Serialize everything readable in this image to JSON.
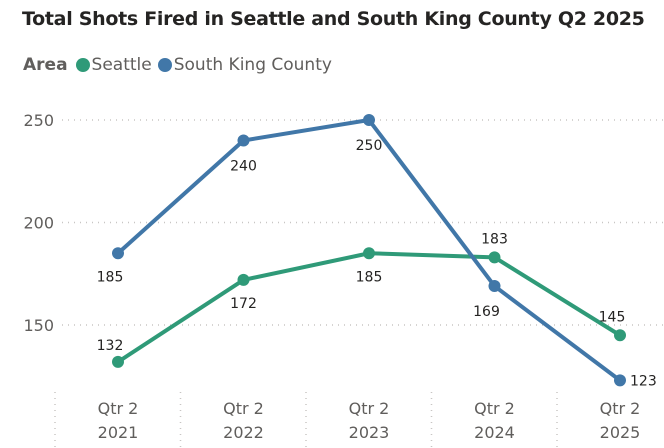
{
  "chart_data": {
    "type": "line",
    "title": "Total Shots Fired in Seattle and South King County Q2 2025",
    "legend_title": "Area",
    "legend_position": "top-left",
    "categories": [
      [
        "Qtr 2",
        "2021"
      ],
      [
        "Qtr 2",
        "2022"
      ],
      [
        "Qtr 2",
        "2023"
      ],
      [
        "Qtr 2",
        "2024"
      ],
      [
        "Qtr 2",
        "2025"
      ]
    ],
    "series": [
      {
        "name": "Seattle",
        "color": "#2f9a78",
        "values": [
          132,
          172,
          185,
          183,
          145
        ]
      },
      {
        "name": "South King County",
        "color": "#4177a8",
        "values": [
          185,
          240,
          250,
          169,
          123
        ]
      }
    ],
    "yticks": [
      150,
      200,
      250
    ],
    "ylim": [
      118,
      268
    ],
    "grid": "horizontal dotted",
    "data_labels": true
  }
}
